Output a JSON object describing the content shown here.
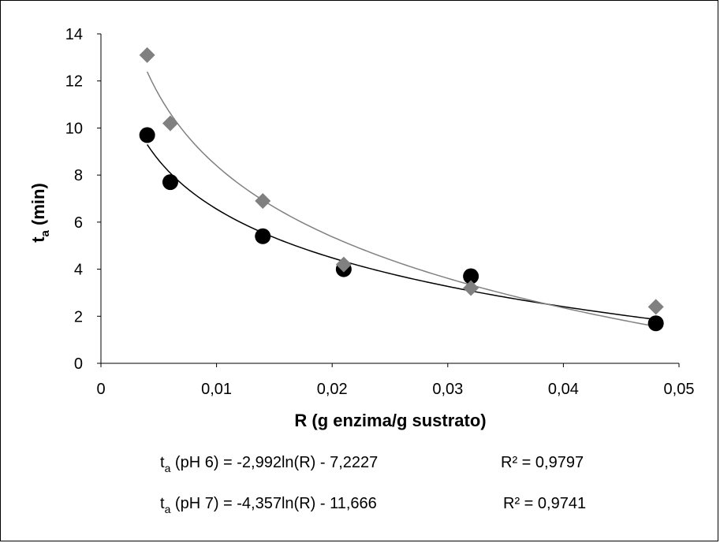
{
  "chart_data": {
    "type": "scatter",
    "xlabel": "R (g enzima/g sustrato)",
    "ylabel_main": "t",
    "ylabel_sub": "a",
    "ylabel_rest": " (min)",
    "xlim": [
      0,
      0.05
    ],
    "ylim": [
      0,
      14
    ],
    "x_ticks": [
      0,
      0.01,
      0.02,
      0.03,
      0.04,
      0.05
    ],
    "x_tick_labels": [
      "0",
      "0,01",
      "0,02",
      "0,03",
      "0,04",
      "0,05"
    ],
    "y_ticks": [
      0,
      2,
      4,
      6,
      8,
      10,
      12,
      14
    ],
    "y_tick_labels": [
      "0",
      "2",
      "4",
      "6",
      "8",
      "10",
      "12",
      "14"
    ],
    "grid": false,
    "series": [
      {
        "marker": "circle",
        "color": "#000000",
        "x": [
          0.004,
          0.006,
          0.014,
          0.021,
          0.032,
          0.048
        ],
        "y": [
          9.7,
          7.7,
          5.4,
          4.0,
          3.7,
          1.7
        ],
        "trend": {
          "type": "log",
          "a": -2.992,
          "b": -7.2227
        }
      },
      {
        "marker": "diamond",
        "color": "#808080",
        "x": [
          0.004,
          0.006,
          0.014,
          0.021,
          0.032,
          0.048
        ],
        "y": [
          13.1,
          10.2,
          6.9,
          4.2,
          3.2,
          2.4
        ],
        "trend": {
          "type": "log",
          "a": -4.357,
          "b": -11.666
        }
      }
    ],
    "equations": [
      {
        "lhs_main": "t",
        "lhs_sub": "a",
        "lhs_rest": " (pH 6) = -2,992ln(R) - 7,2227",
        "r2": "R² = 0,9797"
      },
      {
        "lhs_main": "t",
        "lhs_sub": "a",
        "lhs_rest": " (pH 7) = -4,357ln(R) - 11,666",
        "r2": "R² = 0,9741"
      }
    ]
  }
}
